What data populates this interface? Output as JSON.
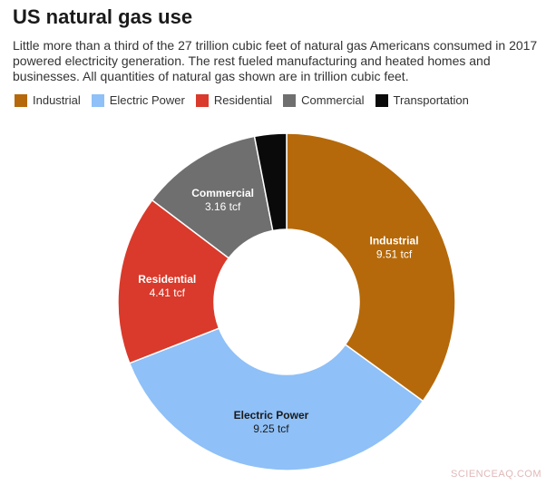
{
  "title": "US natural gas use",
  "subtitle": "Little more than a third of the 27 trillion cubic feet of natural gas Americans consumed in 2017 powered electricity generation. The rest fueled manufacturing and heated homes and businesses. All quantities of natural gas shown are in trillion cubic feet.",
  "watermark": "SCIENCEAQ.COM",
  "chart_data": {
    "type": "pie",
    "donut": true,
    "legend_position": "top-left",
    "slices": [
      {
        "name": "Industrial",
        "value": 9.51,
        "value_label": "9.51 tcf",
        "color": "#b5690a",
        "label_color": "#ffffff",
        "show_label": true
      },
      {
        "name": "Electric Power",
        "value": 9.25,
        "value_label": "9.25 tcf",
        "color": "#8fc0f7",
        "label_color": "#1a1a1a",
        "show_label": true
      },
      {
        "name": "Residential",
        "value": 4.41,
        "value_label": "4.41 tcf",
        "color": "#d93a2b",
        "label_color": "#ffffff",
        "show_label": true
      },
      {
        "name": "Commercial",
        "value": 3.16,
        "value_label": "3.16 tcf",
        "color": "#6f6f6f",
        "label_color": "#ffffff",
        "show_label": true
      },
      {
        "name": "Transportation",
        "value": 0.83,
        "value_label": "",
        "color": "#0a0a0a",
        "label_color": "#ffffff",
        "show_label": false
      }
    ]
  }
}
